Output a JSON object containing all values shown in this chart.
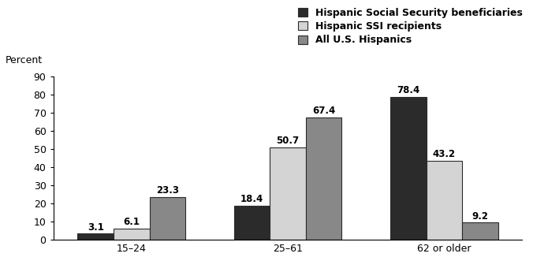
{
  "categories": [
    "15–24",
    "25–61",
    "62 or older"
  ],
  "series": [
    {
      "label": "Hispanic Social Security beneficiaries",
      "values": [
        3.1,
        18.4,
        78.4
      ],
      "color": "#2b2b2b",
      "edgecolor": "#2b2b2b"
    },
    {
      "label": "Hispanic SSI recipients",
      "values": [
        6.1,
        50.7,
        43.2
      ],
      "color": "#d4d4d4",
      "edgecolor": "#2b2b2b"
    },
    {
      "label": "All U.S. Hispanics",
      "values": [
        23.3,
        67.4,
        9.2
      ],
      "color": "#888888",
      "edgecolor": "#2b2b2b"
    }
  ],
  "ylabel": "Percent",
  "ylim": [
    0,
    90
  ],
  "yticks": [
    0,
    10,
    20,
    30,
    40,
    50,
    60,
    70,
    80,
    90
  ],
  "bar_width": 0.23,
  "legend_fontsize": 9,
  "label_fontsize": 8.5,
  "axis_fontsize": 9,
  "tick_fontsize": 9,
  "background_color": "#ffffff",
  "fig_width": 6.76,
  "fig_height": 3.45
}
